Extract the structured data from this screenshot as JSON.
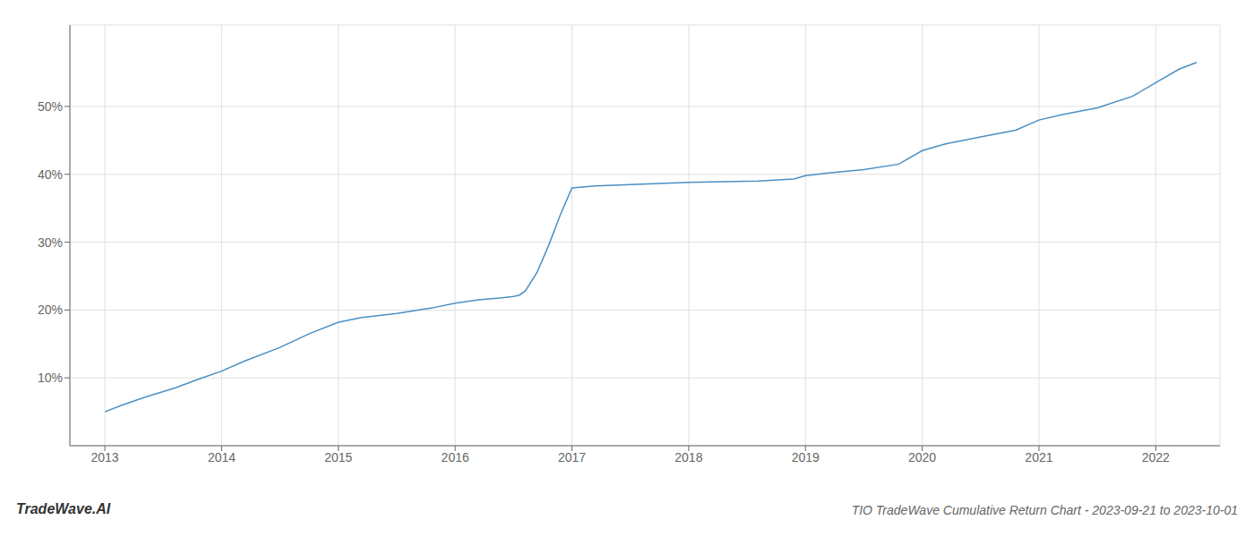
{
  "chart_data": {
    "type": "line",
    "title": "TIO TradeWave Cumulative Return Chart - 2023-09-21 to 2023-10-01",
    "annotations": [
      "TradeWave.AI"
    ],
    "x": [
      2013.0,
      2013.15,
      2013.35,
      2013.6,
      2013.8,
      2014.0,
      2014.2,
      2014.5,
      2014.75,
      2015.0,
      2015.2,
      2015.5,
      2015.8,
      2016.0,
      2016.2,
      2016.4,
      2016.5,
      2016.55,
      2016.6,
      2016.7,
      2016.8,
      2016.9,
      2017.0,
      2017.2,
      2017.5,
      2017.8,
      2018.0,
      2018.3,
      2018.6,
      2018.9,
      2019.0,
      2019.2,
      2019.5,
      2019.8,
      2020.0,
      2020.2,
      2020.5,
      2020.8,
      2021.0,
      2021.2,
      2021.5,
      2021.8,
      2022.0,
      2022.2,
      2022.35
    ],
    "values": [
      5.0,
      6.0,
      7.2,
      8.5,
      9.8,
      11.0,
      12.5,
      14.5,
      16.5,
      18.2,
      18.9,
      19.5,
      20.3,
      21.0,
      21.5,
      21.8,
      22.0,
      22.2,
      22.8,
      25.5,
      29.5,
      34.0,
      38.0,
      38.3,
      38.5,
      38.7,
      38.8,
      38.9,
      39.0,
      39.3,
      39.8,
      40.2,
      40.7,
      41.5,
      43.5,
      44.5,
      45.5,
      46.5,
      48.0,
      48.8,
      49.8,
      51.5,
      53.5,
      55.5,
      56.5
    ],
    "color": "#4a90c4",
    "xlim": [
      2012.7,
      2022.55
    ],
    "xticks": [
      2013,
      2014,
      2015,
      2016,
      2017,
      2018,
      2019,
      2020,
      2021,
      2022
    ],
    "ylim": [
      0,
      62
    ],
    "yticks": [
      {
        "value": 10,
        "label": "10%"
      },
      {
        "value": 20,
        "label": "20%"
      },
      {
        "value": 30,
        "label": "30%"
      },
      {
        "value": 40,
        "label": "40%"
      },
      {
        "value": 50,
        "label": "50%"
      }
    ],
    "grid": true
  }
}
